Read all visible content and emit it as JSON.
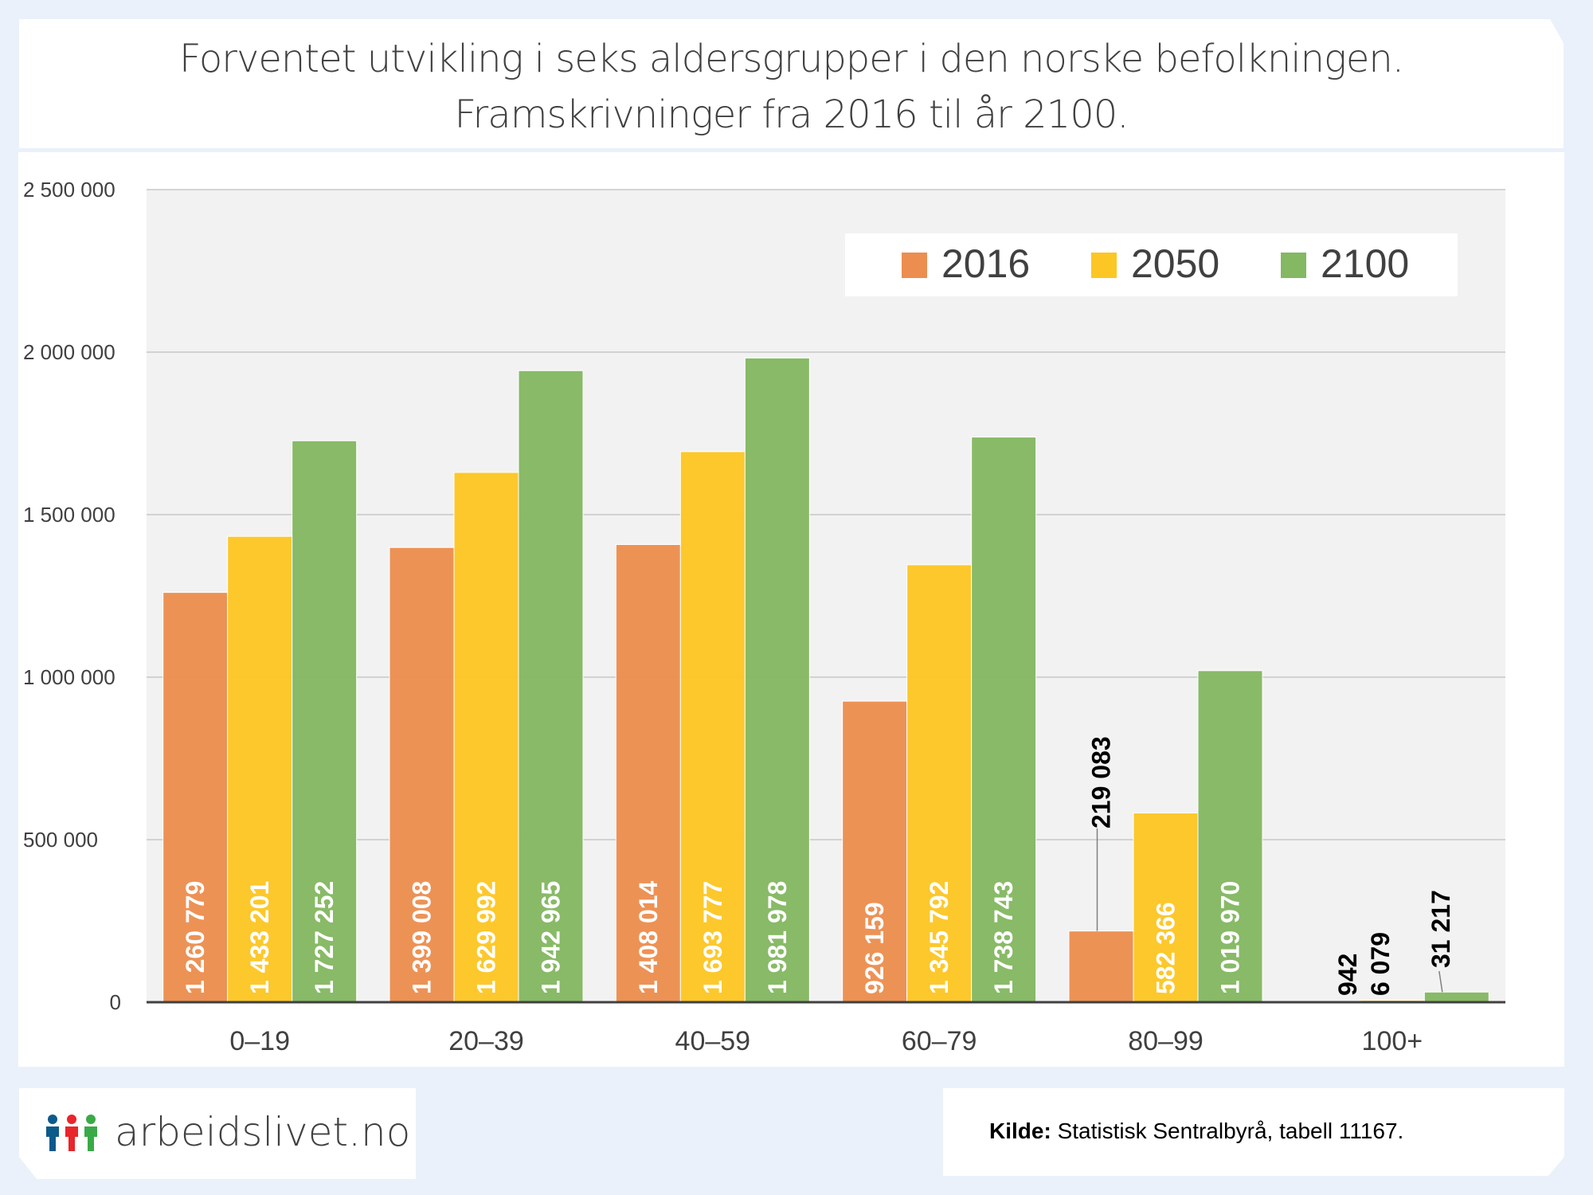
{
  "title": {
    "line1": "Forventet utvikling i seks aldersgrupper i den norske befolkningen.",
    "line2": "Framskrivninger fra 2016 til år 2100."
  },
  "logo": {
    "text": "arbeidslivet.no",
    "icon": "three-people-icon",
    "icon_colors": [
      "#0B5A8A",
      "#E8262B",
      "#3AAA47"
    ]
  },
  "source": {
    "label": "Kilde:",
    "text": "Statistisk Sentralbyrå, tabell 11167."
  },
  "chart_data": {
    "type": "bar",
    "title": "Forventet utvikling i seks aldersgrupper i den norske befolkningen. Framskrivninger fra 2016 til år 2100.",
    "xlabel": "",
    "ylabel": "",
    "categories": [
      "0–19",
      "20–39",
      "40–59",
      "60–79",
      "80–99",
      "100+"
    ],
    "series": [
      {
        "name": "2016",
        "color": "#EC8E4F",
        "values": [
          1260779,
          1399008,
          1408014,
          926159,
          219083,
          942
        ],
        "labels": [
          "1 260 779",
          "1 399 008",
          "1 408 014",
          "926 159",
          "219 083",
          "942"
        ]
      },
      {
        "name": "2050",
        "color": "#FCC625",
        "values": [
          1433201,
          1629992,
          1693777,
          1345792,
          582366,
          6079
        ],
        "labels": [
          "1 433 201",
          "1 629 992",
          "1 693 777",
          "1 345 792",
          "582 366",
          "6 079"
        ]
      },
      {
        "name": "2100",
        "color": "#84B862",
        "values": [
          1727252,
          1942965,
          1981978,
          1738743,
          1019970,
          31217
        ],
        "labels": [
          "1 727 252",
          "1 942 965",
          "1 981 978",
          "1 738 743",
          "1 019 970",
          "31 217"
        ]
      }
    ],
    "ylim": [
      0,
      2500000
    ],
    "yticks": [
      0,
      500000,
      1000000,
      1500000,
      2000000,
      2500000
    ],
    "ytick_labels": [
      "0",
      "500 000",
      "1 000 000",
      "1 500 000",
      "2 000 000",
      "2 500 000"
    ],
    "grid": true,
    "legend_position": "top-right",
    "plot_background": "#F2F2F2"
  }
}
